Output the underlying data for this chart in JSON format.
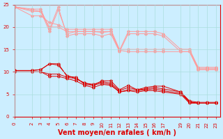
{
  "background_color": "#cceeff",
  "grid_color": "#aadddd",
  "line_color_dark": "#dd0000",
  "line_color_light": "#ff9999",
  "xlabel": "Vent moyen/en rafales ( km/h )",
  "xlabel_color": "#dd0000",
  "xlabel_fontsize": 7,
  "tick_color": "#dd0000",
  "tick_fontsize": 5,
  "xlim": [
    0,
    23.5
  ],
  "ylim": [
    0,
    25
  ],
  "yticks": [
    0,
    5,
    10,
    15,
    20,
    25
  ],
  "x": [
    0,
    2,
    3,
    4,
    5,
    6,
    7,
    8,
    9,
    10,
    11,
    12,
    13,
    14,
    15,
    16,
    17,
    19,
    20,
    21,
    22,
    23
  ],
  "lines_dark": [
    [
      10.3,
      10.3,
      10.5,
      11.8,
      11.8,
      9.0,
      8.8,
      7.2,
      7.0,
      8.0,
      8.0,
      6.0,
      7.0,
      6.0,
      6.5,
      6.8,
      6.8,
      5.5,
      3.3,
      3.0,
      3.0,
      3.0
    ],
    [
      10.3,
      10.3,
      10.5,
      11.8,
      11.5,
      9.2,
      8.5,
      7.5,
      7.2,
      7.8,
      7.5,
      5.8,
      6.5,
      6.0,
      6.2,
      6.5,
      6.2,
      5.5,
      3.5,
      3.2,
      3.2,
      3.2
    ],
    [
      10.0,
      10.0,
      10.0,
      9.5,
      9.5,
      8.8,
      8.5,
      7.5,
      7.0,
      7.5,
      7.2,
      5.5,
      6.0,
      5.8,
      6.0,
      6.2,
      5.8,
      5.2,
      3.2,
      3.0,
      3.0,
      3.0
    ],
    [
      10.0,
      10.0,
      10.0,
      9.0,
      9.0,
      8.5,
      8.0,
      7.0,
      6.5,
      7.2,
      7.0,
      5.5,
      5.8,
      5.5,
      5.8,
      5.8,
      5.5,
      5.0,
      3.0,
      3.0,
      3.0,
      3.0
    ]
  ],
  "lines_light": [
    [
      24.5,
      24.0,
      24.0,
      19.5,
      24.5,
      18.0,
      18.5,
      18.5,
      18.5,
      18.0,
      18.5,
      14.5,
      18.5,
      18.5,
      18.5,
      18.5,
      18.0,
      14.5,
      14.5,
      10.5,
      10.5,
      10.5
    ],
    [
      24.5,
      23.8,
      23.5,
      19.0,
      23.8,
      18.5,
      19.0,
      19.0,
      19.0,
      18.8,
      19.0,
      14.8,
      19.0,
      19.0,
      19.0,
      19.0,
      18.5,
      15.0,
      15.0,
      10.8,
      10.8,
      10.8
    ],
    [
      24.5,
      23.5,
      23.5,
      20.0,
      20.0,
      19.0,
      19.0,
      19.0,
      19.0,
      19.0,
      19.0,
      14.8,
      14.5,
      14.5,
      14.5,
      14.5,
      14.5,
      14.5,
      14.5,
      10.5,
      10.5,
      10.5
    ],
    [
      24.5,
      22.5,
      22.5,
      21.0,
      20.5,
      19.5,
      19.5,
      19.5,
      19.5,
      19.5,
      19.5,
      15.0,
      15.0,
      15.0,
      15.0,
      15.0,
      15.0,
      15.0,
      15.0,
      11.0,
      11.0,
      11.0
    ]
  ],
  "xtick_labels": [
    "0",
    "2",
    "3",
    "4",
    "5",
    "6",
    "7",
    "8",
    "9",
    "10",
    "11",
    "12",
    "13",
    "14",
    "15",
    "16",
    "17",
    "19",
    "20",
    "21",
    "22",
    "23"
  ]
}
